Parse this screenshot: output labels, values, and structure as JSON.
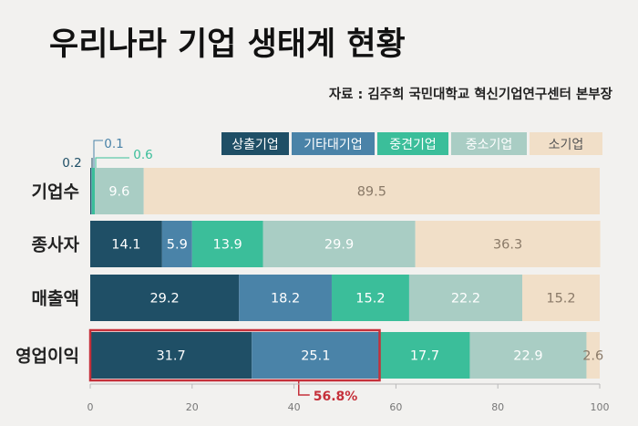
{
  "header": {
    "title": "우리나라 기업 생태계 현황",
    "source": "자료 : 김주희 국민대학교 혁신기업연구센터 본부장"
  },
  "colors": {
    "background": "#f2f1ef",
    "series": [
      "#1f4f66",
      "#4a83a8",
      "#3bbe9a",
      "#a9cdc4",
      "#f1dfc8"
    ],
    "series_text": [
      "#ffffff",
      "#ffffff",
      "#ffffff",
      "#ffffff",
      "#8a7a68"
    ],
    "legend_text": [
      "#ffffff",
      "#ffffff",
      "#ffffff",
      "#ffffff",
      "#555555"
    ],
    "highlight": "#c5303a",
    "tiny_segment_labels": [
      "#1f4f66",
      "#4a83a8",
      "#3bbe9a"
    ]
  },
  "chart_data": {
    "type": "bar",
    "orientation": "horizontal",
    "stacked": true,
    "categories": [
      "기업수",
      "종사자",
      "매출액",
      "영업이익"
    ],
    "series": [
      {
        "name": "상출기업",
        "values": [
          0.2,
          14.1,
          29.2,
          31.7
        ]
      },
      {
        "name": "기타대기업",
        "values": [
          0.1,
          5.9,
          18.2,
          25.1
        ]
      },
      {
        "name": "중견기업",
        "values": [
          0.6,
          13.9,
          15.2,
          17.7
        ]
      },
      {
        "name": "중소기업",
        "values": [
          9.6,
          29.9,
          22.2,
          22.9
        ]
      },
      {
        "name": "소기업",
        "values": [
          89.5,
          36.3,
          15.2,
          2.6
        ]
      }
    ],
    "xlim": [
      0,
      100
    ],
    "xticks": [
      0,
      20,
      40,
      60,
      80,
      100
    ],
    "legend_position": "top-right",
    "grid": false,
    "annotations": [
      {
        "category": "영업이익",
        "series": [
          "상출기업",
          "기타대기업"
        ],
        "text": "56.8%"
      }
    ]
  }
}
